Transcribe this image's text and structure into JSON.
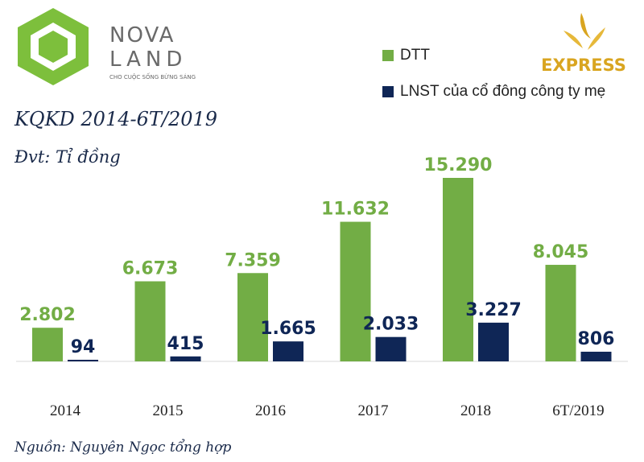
{
  "brand": {
    "logo_left": "NOVA LAND",
    "logo_left_tagline": "CHO CUỘC SỐNG BỪNG SÁNG",
    "logo_right": "EXPRESS"
  },
  "colors": {
    "dtt": "#72ad45",
    "lnst": "#0f2656",
    "title": "#1a2a4a",
    "logo_green": "#7dbf3c",
    "logo_gray": "#8a8a8a",
    "express_gold": "#d9a520"
  },
  "legend": [
    {
      "label": "DTT",
      "color": "#72ad45"
    },
    {
      "label": "LNST của cổ đông công ty mẹ",
      "color": "#0f2656"
    }
  ],
  "title": "KQKD 2014-6T/2019",
  "unit": "Đvt: Tỉ đồng",
  "source": "Nguồn: Nguyên Ngọc tổng hợp",
  "chart_data": {
    "type": "bar",
    "categories": [
      "2014",
      "2015",
      "2016",
      "2017",
      "2018",
      "6T/2019"
    ],
    "series": [
      {
        "name": "DTT",
        "values": [
          2802,
          6673,
          7359,
          11632,
          15290,
          8045
        ],
        "labels": [
          "2.802",
          "6.673",
          "7.359",
          "11.632",
          "15.290",
          "8.045"
        ]
      },
      {
        "name": "LNST của cổ đông công ty mẹ",
        "values": [
          94,
          415,
          1665,
          2033,
          3227,
          806
        ],
        "labels": [
          "94",
          "415",
          "1.665",
          "2.033",
          "3.227",
          "806"
        ]
      }
    ],
    "title": "KQKD 2014-6T/2019",
    "ylabel": "Đvt: Tỉ đồng",
    "ylim": [
      0,
      15290
    ],
    "grid": false,
    "legend_position": "top-right"
  }
}
